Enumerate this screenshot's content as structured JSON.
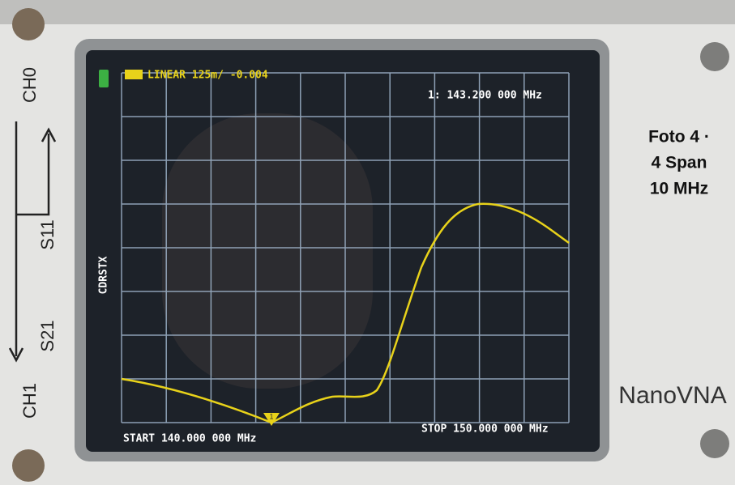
{
  "screen": {
    "format": "LINEAR 125m/ -0.004",
    "marker": "1: 143.200 000 MHz",
    "marker_flag": "1",
    "start": "START 140.000 000 MHz",
    "stop": "STOP 150.000 000 MHz",
    "side_menu": "CDRSTX"
  },
  "device": {
    "ch0": "CH0",
    "s11": "S11",
    "s21": "S21",
    "ch1": "CH1",
    "brand": "NanoVNA"
  },
  "caption": {
    "line1": "Foto 4 ·",
    "line2": "4  Span",
    "line3": "10 MHz"
  }
}
